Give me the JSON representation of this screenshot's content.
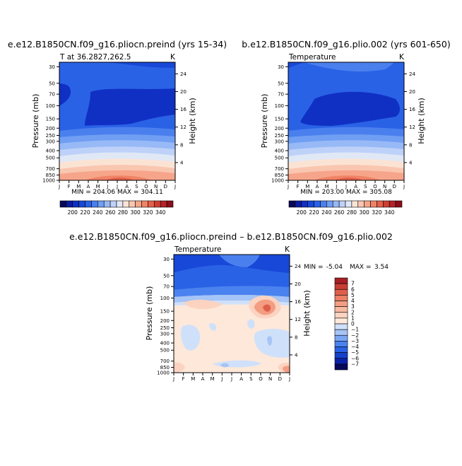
{
  "colors": {
    "background": "#ffffff",
    "axis": "#000000",
    "temperature_scale": [
      "#08085a",
      "#0b1c9e",
      "#1030c4",
      "#1848d8",
      "#2a62e6",
      "#4a7fee",
      "#6f9ef3",
      "#97b9f6",
      "#bed1f8",
      "#e0e8f6",
      "#fbe3d4",
      "#f9c6b0",
      "#f6a58a",
      "#f08366",
      "#e4604a",
      "#cf3e33",
      "#b32228",
      "#8c0d1b"
    ],
    "difference_scale": [
      "#08085a",
      "#0b22a8",
      "#1542cc",
      "#2a62e6",
      "#4a82ef",
      "#7aa6f4",
      "#a5c4f7",
      "#cfe0fa",
      "#fde8da",
      "#fbd3c0",
      "#f8b9a1",
      "#f39d82",
      "#ec7f64",
      "#df5f4a",
      "#c93e34",
      "#a61f24"
    ]
  },
  "chart_data": [
    {
      "type": "heatmap",
      "title": "e.e12.B1850CN.f09_g16.pliocn.preind (yrs 15-34)",
      "left_label": "T at 36.2827,262.5",
      "units": "K",
      "xlabel": "",
      "x_categories": [
        "J",
        "F",
        "M",
        "A",
        "M",
        "J",
        "J",
        "A",
        "S",
        "O",
        "N",
        "D",
        "J"
      ],
      "ylabel": "Pressure (mb)",
      "y_ticks": [
        30,
        50,
        70,
        100,
        150,
        200,
        250,
        300,
        400,
        500,
        700,
        850,
        1000
      ],
      "right_axis_label": "Height (km)",
      "right_ticks": [
        24,
        20,
        16,
        12,
        8,
        4
      ],
      "min_max_text": "MIN = 204.06   MAX = 304.11",
      "min": 204.06,
      "max": 304.11,
      "colorbar": {
        "levels": [
          190,
          200,
          210,
          220,
          230,
          240,
          250,
          260,
          270,
          280,
          290,
          300,
          310,
          320,
          330,
          340,
          350
        ],
        "tick_labels": [
          "200",
          "220",
          "240",
          "260",
          "280",
          "300",
          "320",
          "340"
        ]
      }
    },
    {
      "type": "heatmap",
      "title": "b.e12.B1850CN.f09_g16.plio.002 (yrs 601-650)",
      "left_label": "Temperature",
      "units": "K",
      "xlabel": "",
      "x_categories": [
        "J",
        "F",
        "M",
        "A",
        "M",
        "J",
        "J",
        "A",
        "S",
        "O",
        "N",
        "D",
        "J"
      ],
      "ylabel": "Pressure (mb)",
      "y_ticks": [
        30,
        50,
        70,
        100,
        150,
        200,
        250,
        300,
        400,
        500,
        700,
        850,
        1000
      ],
      "right_axis_label": "Height (km)",
      "right_ticks": [
        24,
        20,
        16,
        12,
        8,
        4
      ],
      "min_max_text": "MIN = 203.00   MAX = 305.08",
      "min": 203.0,
      "max": 305.08,
      "colorbar": {
        "levels": [
          190,
          200,
          210,
          220,
          230,
          240,
          250,
          260,
          270,
          280,
          290,
          300,
          310,
          320,
          330,
          340,
          350
        ],
        "tick_labels": [
          "200",
          "220",
          "240",
          "260",
          "280",
          "300",
          "320",
          "340"
        ]
      }
    },
    {
      "type": "heatmap",
      "title": "e.e12.B1850CN.f09_g16.pliocn.preind  –  b.e12.B1850CN.f09_g16.plio.002",
      "left_label": "Temperature",
      "units": "K",
      "xlabel": "",
      "x_categories": [
        "J",
        "F",
        "M",
        "A",
        "M",
        "J",
        "J",
        "A",
        "S",
        "O",
        "N",
        "D",
        "J"
      ],
      "ylabel": "Pressure (mb)",
      "y_ticks": [
        30,
        50,
        70,
        100,
        150,
        200,
        250,
        300,
        400,
        500,
        700,
        850,
        1000
      ],
      "right_axis_label": "Height (km)",
      "right_ticks": [
        24,
        20,
        16,
        12,
        8,
        4
      ],
      "min_label": "MIN =",
      "min_value": "-5.04",
      "max_label": "MAX =",
      "max_value": "3.54",
      "min": -5.04,
      "max": 3.54,
      "colorbar": {
        "levels": [
          7,
          6,
          5,
          4,
          3,
          2,
          1,
          0,
          -1,
          -2,
          -3,
          -4,
          -5,
          -6,
          -7
        ],
        "tick_labels": [
          "7",
          "6",
          "5",
          "4",
          "3",
          "2",
          "1",
          "0",
          "−1",
          "−2",
          "−3",
          "−4",
          "−5",
          "−6",
          "−7"
        ]
      }
    }
  ]
}
